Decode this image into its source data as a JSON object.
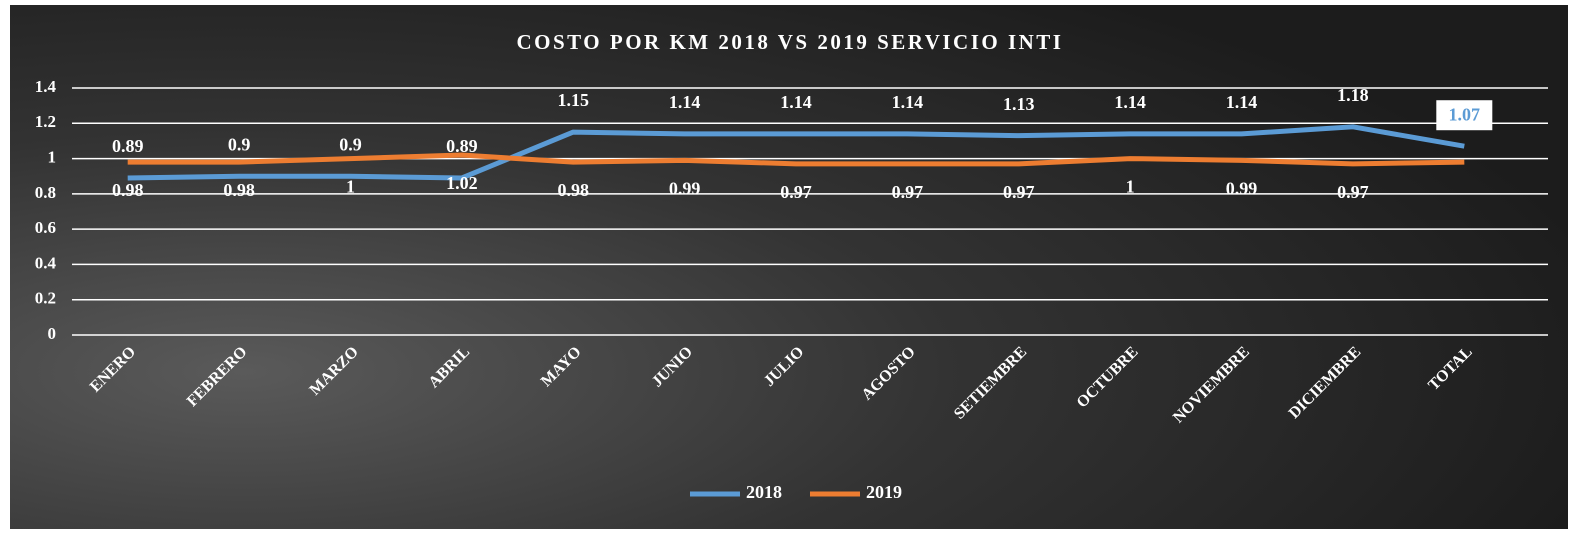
{
  "chart_data": {
    "type": "line",
    "title": "COSTO POR KM 2018 VS 2019 SERVICIO INTI",
    "categories": [
      "ENERO",
      "FEBRERO",
      "MARZO",
      "ABRIL",
      "MAYO",
      "JUNIO",
      "JULIO",
      "AGOSTO",
      "SETIEMBRE",
      "OCTUBRE",
      "NOVIEMBRE",
      "DICIEMBRE",
      "TOTAL"
    ],
    "series": [
      {
        "name": "2018",
        "color": "#5b9bd5",
        "values": [
          0.89,
          0.9,
          0.9,
          0.89,
          1.15,
          1.14,
          1.14,
          1.14,
          1.13,
          1.14,
          1.14,
          1.18,
          1.07
        ]
      },
      {
        "name": "2019",
        "color": "#ed7d31",
        "values": [
          0.98,
          0.98,
          1,
          1.02,
          0.98,
          0.99,
          0.97,
          0.97,
          0.97,
          1,
          0.99,
          0.97,
          0.98
        ],
        "value_labels": [
          "0.98",
          "0.98",
          "1",
          "1.02",
          "0.98",
          "0.99",
          "0.97",
          "0.97",
          "0.97",
          "1",
          "0.99",
          "0.97",
          null
        ]
      }
    ],
    "ylim": [
      0,
      1.4
    ],
    "yticks": [
      0,
      0.2,
      0.4,
      0.6,
      0.8,
      1,
      1.2,
      1.4
    ],
    "grid": true,
    "legend": "bottom"
  }
}
